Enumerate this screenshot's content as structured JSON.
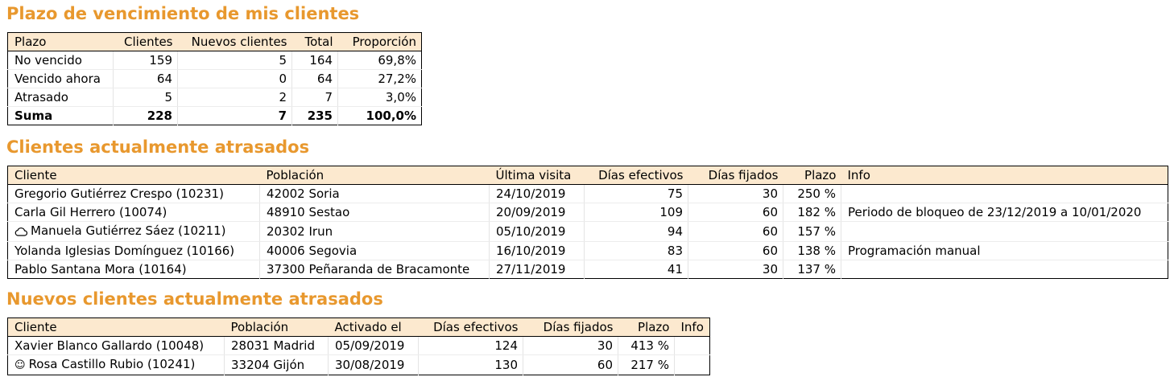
{
  "section1": {
    "title": "Plazo de vencimiento de mis clientes",
    "headers": [
      "Plazo",
      "Clientes",
      "Nuevos clientes",
      "Total",
      "Proporción"
    ],
    "rows": [
      [
        "No vencido",
        "159",
        "5",
        "164",
        "69,8%"
      ],
      [
        "Vencido ahora",
        "64",
        "0",
        "64",
        "27,2%"
      ],
      [
        "Atrasado",
        "5",
        "2",
        "7",
        "3,0%"
      ]
    ],
    "sum": [
      "Suma",
      "228",
      "7",
      "235",
      "100,0%"
    ]
  },
  "section2": {
    "title": "Clientes actualmente atrasados",
    "headers": [
      "Cliente",
      "Población",
      "Última visita",
      "Días efectivos",
      "Días fijados",
      "Plazo",
      "Info"
    ],
    "rows": [
      [
        "Gregorio Gutiérrez Crespo (10231)",
        "42002 Soria",
        "24/10/2019",
        "75",
        "30",
        "250 %",
        ""
      ],
      [
        "Carla Gil Herrero (10074)",
        "48910 Sestao",
        "20/09/2019",
        "109",
        "60",
        "182 %",
        "Periodo de bloqueo de 23/12/2019 a 10/01/2020"
      ],
      [
        "Manuela Gutiérrez Sáez (10211)",
        "20302 Irun",
        "05/10/2019",
        "94",
        "60",
        "157 %",
        ""
      ],
      [
        "Yolanda Iglesias Domínguez (10166)",
        "40006 Segovia",
        "16/10/2019",
        "83",
        "60",
        "138 %",
        "Programación manual"
      ],
      [
        "Pablo Santana Mora (10164)",
        "37300 Peñaranda de Bracamonte",
        "27/11/2019",
        "41",
        "30",
        "137 %",
        ""
      ]
    ],
    "row_icons": [
      "",
      "",
      "cloud-icon",
      "",
      ""
    ]
  },
  "section3": {
    "title": "Nuevos clientes actualmente atrasados",
    "headers": [
      "Cliente",
      "Población",
      "Activado el",
      "Días efectivos",
      "Días fijados",
      "Plazo",
      "Info"
    ],
    "rows": [
      [
        "Xavier Blanco Gallardo (10048)",
        "28031 Madrid",
        "05/09/2019",
        "124",
        "30",
        "413 %",
        ""
      ],
      [
        "Rosa Castillo Rubio (10241)",
        "33204 Gijón",
        "30/08/2019",
        "130",
        "60",
        "217 %",
        ""
      ]
    ],
    "row_icons": [
      "",
      "smiley-icon"
    ]
  },
  "colors": {
    "heading": "#e8982e",
    "header_bg": "#fce9cf"
  }
}
